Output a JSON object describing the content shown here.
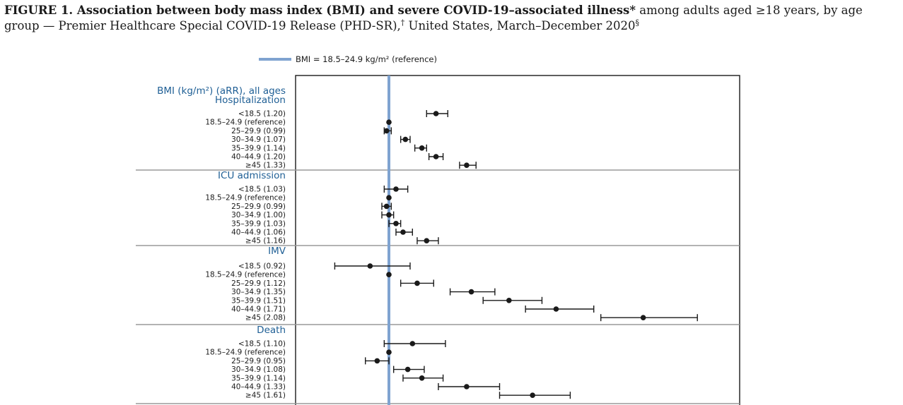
{
  "title": {
    "lead": "FIGURE 1. Association between body mass index (BMI) and severe COVID-19–associated illness",
    "star": "*",
    "mid": " among adults aged ≥18 years, by age group — Premier Healthcare Special COVID-19 Release (PHD-SR),",
    "dagger": "†",
    "tail": " United States, March–December 2020",
    "section": "§"
  },
  "chart_data": {
    "type": "scatter",
    "subtype": "forest-plot",
    "title": "BMI (kg/m²) (aRR), all ages",
    "legend": {
      "label": "BMI = 18.5–24.9 kg/m² (reference)",
      "color": "#7fa3d0",
      "placement": "top"
    },
    "reference_value": 1.0,
    "xlim": [
      0.7,
      2.6
    ],
    "xlabel": "",
    "grid": false,
    "colors": {
      "marker": "#1a1a1a",
      "header_text": "#1f5f95",
      "reference_line": "#7fa3d0",
      "divider": "#9a9a9a"
    },
    "groups": [
      {
        "name": "Hospitalization",
        "rows": [
          {
            "label": "<18.5 (1.20)",
            "category": "<18.5",
            "value": 1.2,
            "ci_low": 1.16,
            "ci_high": 1.25
          },
          {
            "label": "18.5–24.9 (reference)",
            "category": "18.5–24.9",
            "value": 1.0,
            "ci_low": 1.0,
            "ci_high": 1.0
          },
          {
            "label": "25–29.9 (0.99)",
            "category": "25–29.9",
            "value": 0.99,
            "ci_low": 0.98,
            "ci_high": 1.01
          },
          {
            "label": "30–34.9 (1.07)",
            "category": "30–34.9",
            "value": 1.07,
            "ci_low": 1.05,
            "ci_high": 1.09
          },
          {
            "label": "35–39.9 (1.14)",
            "category": "35–39.9",
            "value": 1.14,
            "ci_low": 1.11,
            "ci_high": 1.16
          },
          {
            "label": "40–44.9 (1.20)",
            "category": "40–44.9",
            "value": 1.2,
            "ci_low": 1.17,
            "ci_high": 1.23
          },
          {
            "label": "≥45 (1.33)",
            "category": "≥45",
            "value": 1.33,
            "ci_low": 1.3,
            "ci_high": 1.37
          }
        ]
      },
      {
        "name": "ICU admission",
        "rows": [
          {
            "label": "<18.5 (1.03)",
            "category": "<18.5",
            "value": 1.03,
            "ci_low": 0.98,
            "ci_high": 1.08
          },
          {
            "label": "18.5–24.9 (reference)",
            "category": "18.5–24.9",
            "value": 1.0,
            "ci_low": 1.0,
            "ci_high": 1.0
          },
          {
            "label": "25–29.9 (0.99)",
            "category": "25–29.9",
            "value": 0.99,
            "ci_low": 0.97,
            "ci_high": 1.01
          },
          {
            "label": "30–34.9 (1.00)",
            "category": "30–34.9",
            "value": 1.0,
            "ci_low": 0.97,
            "ci_high": 1.02
          },
          {
            "label": "35–39.9 (1.03)",
            "category": "35–39.9",
            "value": 1.03,
            "ci_low": 1.0,
            "ci_high": 1.05
          },
          {
            "label": "40–44.9 (1.06)",
            "category": "40–44.9",
            "value": 1.06,
            "ci_low": 1.03,
            "ci_high": 1.1
          },
          {
            "label": "≥45 (1.16)",
            "category": "≥45",
            "value": 1.16,
            "ci_low": 1.12,
            "ci_high": 1.21
          }
        ]
      },
      {
        "name": "IMV",
        "rows": [
          {
            "label": "<18.5 (0.92)",
            "category": "<18.5",
            "value": 0.92,
            "ci_low": 0.77,
            "ci_high": 1.09
          },
          {
            "label": "18.5–24.9 (reference)",
            "category": "18.5–24.9",
            "value": 1.0,
            "ci_low": 1.0,
            "ci_high": 1.0
          },
          {
            "label": "25–29.9 (1.12)",
            "category": "25–29.9",
            "value": 1.12,
            "ci_low": 1.05,
            "ci_high": 1.19
          },
          {
            "label": "30–34.9 (1.35)",
            "category": "30–34.9",
            "value": 1.35,
            "ci_low": 1.26,
            "ci_high": 1.45
          },
          {
            "label": "35–39.9 (1.51)",
            "category": "35–39.9",
            "value": 1.51,
            "ci_low": 1.4,
            "ci_high": 1.65
          },
          {
            "label": "40–44.9 (1.71)",
            "category": "40–44.9",
            "value": 1.71,
            "ci_low": 1.58,
            "ci_high": 1.87
          },
          {
            "label": "≥45 (2.08)",
            "category": "≥45",
            "value": 2.08,
            "ci_low": 1.9,
            "ci_high": 2.31
          }
        ]
      },
      {
        "name": "Death",
        "rows": [
          {
            "label": "<18.5 (1.10)",
            "category": "<18.5",
            "value": 1.1,
            "ci_low": 0.98,
            "ci_high": 1.24
          },
          {
            "label": "18.5–24.9 (reference)",
            "category": "18.5–24.9",
            "value": 1.0,
            "ci_low": 1.0,
            "ci_high": 1.0
          },
          {
            "label": "25–29.9 (0.95)",
            "category": "25–29.9",
            "value": 0.95,
            "ci_low": 0.9,
            "ci_high": 1.0
          },
          {
            "label": "30–34.9 (1.08)",
            "category": "30–34.9",
            "value": 1.08,
            "ci_low": 1.02,
            "ci_high": 1.15
          },
          {
            "label": "35–39.9 (1.14)",
            "category": "35–39.9",
            "value": 1.14,
            "ci_low": 1.06,
            "ci_high": 1.23
          },
          {
            "label": "40–44.9 (1.33)",
            "category": "40–44.9",
            "value": 1.33,
            "ci_low": 1.21,
            "ci_high": 1.47
          },
          {
            "label": "≥45 (1.61)",
            "category": "≥45",
            "value": 1.61,
            "ci_low": 1.47,
            "ci_high": 1.77
          }
        ]
      }
    ]
  }
}
